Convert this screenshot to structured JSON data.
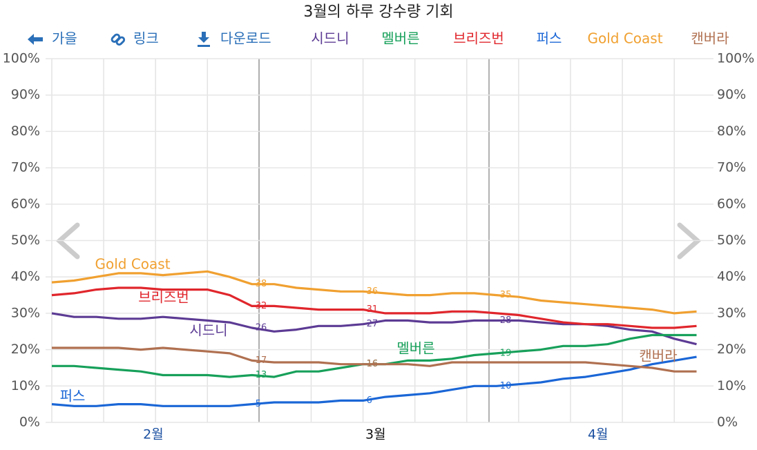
{
  "nav": [
    "가을",
    "링크",
    "다운로드"
  ],
  "chart_data": {
    "type": "line",
    "title": "3월의 하루 강수량 기회",
    "categories": [
      null,
      null,
      null,
      null,
      null,
      "2월",
      null,
      null,
      null,
      null,
      null,
      null,
      null,
      null,
      null,
      "3월",
      null,
      null,
      null,
      null,
      null,
      null,
      null,
      null,
      null,
      "4월",
      null,
      null,
      null,
      null
    ],
    "ylim": [
      0,
      100
    ],
    "yticks": [
      {
        "value": 0,
        "label": "0%"
      },
      {
        "value": 10,
        "label": "10%"
      },
      {
        "value": 20,
        "label": "20%"
      },
      {
        "value": 30,
        "label": "30%"
      },
      {
        "value": 40,
        "label": "40%"
      },
      {
        "value": 50,
        "label": "50%"
      },
      {
        "value": 60,
        "label": "60%"
      },
      {
        "value": 70,
        "label": "70%"
      },
      {
        "value": 80,
        "label": "80%"
      },
      {
        "value": 90,
        "label": "90%"
      },
      {
        "value": 100,
        "label": "100%"
      }
    ],
    "grid": true,
    "series": [
      {
        "name": "시드니",
        "color": "#5c3b94",
        "values": [
          30,
          29,
          29,
          28.5,
          28.5,
          29,
          28.5,
          28,
          27.5,
          26,
          25,
          25.5,
          26.5,
          26.5,
          27,
          28,
          28,
          27.5,
          27.5,
          28,
          28,
          28,
          27.5,
          27,
          27,
          26.5,
          25.5,
          25,
          23,
          21.5
        ],
        "value_labels": [
          null,
          null,
          null,
          null,
          null,
          null,
          null,
          null,
          null,
          "26",
          null,
          null,
          null,
          null,
          "27",
          null,
          null,
          null,
          null,
          null,
          "28",
          null,
          null,
          null,
          null,
          null,
          null,
          null,
          null,
          null
        ]
      },
      {
        "name": "멜버른",
        "color": "#17a05a",
        "values": [
          15.5,
          15.5,
          15,
          14.5,
          14,
          13,
          13,
          13,
          12.5,
          13,
          12.5,
          14,
          14,
          15,
          16,
          16,
          17,
          17,
          17.5,
          18.5,
          19,
          19.5,
          20,
          21,
          21,
          21.5,
          23,
          24,
          24,
          24
        ],
        "value_labels": [
          null,
          null,
          null,
          null,
          null,
          null,
          null,
          null,
          null,
          "13",
          null,
          null,
          null,
          null,
          "16",
          null,
          null,
          null,
          null,
          null,
          "19",
          null,
          null,
          null,
          null,
          null,
          null,
          null,
          null,
          null
        ]
      },
      {
        "name": "브리즈번",
        "color": "#e0262c",
        "values": [
          35,
          35.5,
          36.5,
          37,
          37,
          36.5,
          36.5,
          36.5,
          35,
          32,
          32,
          31.5,
          31,
          31,
          31,
          30,
          30,
          30,
          30.5,
          30.5,
          30,
          29.5,
          28.5,
          27.5,
          27,
          27,
          26.5,
          26,
          26,
          26.5
        ],
        "value_labels": [
          null,
          null,
          null,
          null,
          null,
          null,
          null,
          null,
          null,
          "32",
          null,
          null,
          null,
          null,
          "31",
          null,
          null,
          null,
          null,
          null,
          null,
          null,
          null,
          null,
          null,
          null,
          null,
          null,
          null,
          null
        ]
      },
      {
        "name": "퍼스",
        "color": "#1a66d6",
        "values": [
          5,
          4.5,
          4.5,
          5,
          5,
          4.5,
          4.5,
          4.5,
          4.5,
          5,
          5.5,
          5.5,
          5.5,
          6,
          6,
          7,
          7.5,
          8,
          9,
          10,
          10,
          10.5,
          11,
          12,
          12.5,
          13.5,
          14.5,
          16,
          17,
          18
        ],
        "value_labels": [
          null,
          null,
          null,
          null,
          null,
          null,
          null,
          null,
          null,
          "5",
          null,
          null,
          null,
          null,
          "6",
          null,
          null,
          null,
          null,
          null,
          "10",
          null,
          null,
          null,
          null,
          null,
          null,
          null,
          null,
          null
        ]
      },
      {
        "name": "Gold Coast",
        "color": "#f0a030",
        "values": [
          38.5,
          39,
          40,
          41,
          41,
          40.5,
          41,
          41.5,
          40,
          38,
          38,
          37,
          36.5,
          36,
          36,
          35.5,
          35,
          35,
          35.5,
          35.5,
          35,
          34.5,
          33.5,
          33,
          32.5,
          32,
          31.5,
          31,
          30,
          30.5
        ],
        "value_labels": [
          null,
          null,
          null,
          null,
          null,
          null,
          null,
          null,
          null,
          "38",
          null,
          null,
          null,
          null,
          "36",
          null,
          null,
          null,
          null,
          null,
          "35",
          null,
          null,
          null,
          null,
          null,
          null,
          null,
          null,
          null
        ]
      },
      {
        "name": "캔버라",
        "color": "#b07050",
        "values": [
          20.5,
          20.5,
          20.5,
          20.5,
          20,
          20.5,
          20,
          19.5,
          19,
          17,
          16.5,
          16.5,
          16.5,
          16,
          16,
          16,
          16,
          15.5,
          16.5,
          16.5,
          16.5,
          16.5,
          16.5,
          16.5,
          16.5,
          16,
          15.5,
          15,
          14,
          14
        ],
        "value_labels": [
          null,
          null,
          null,
          null,
          null,
          null,
          null,
          null,
          null,
          "17",
          null,
          null,
          null,
          null,
          "16",
          null,
          null,
          null,
          null,
          null,
          null,
          null,
          null,
          null,
          null,
          null,
          null,
          null,
          null,
          null
        ]
      }
    ]
  }
}
